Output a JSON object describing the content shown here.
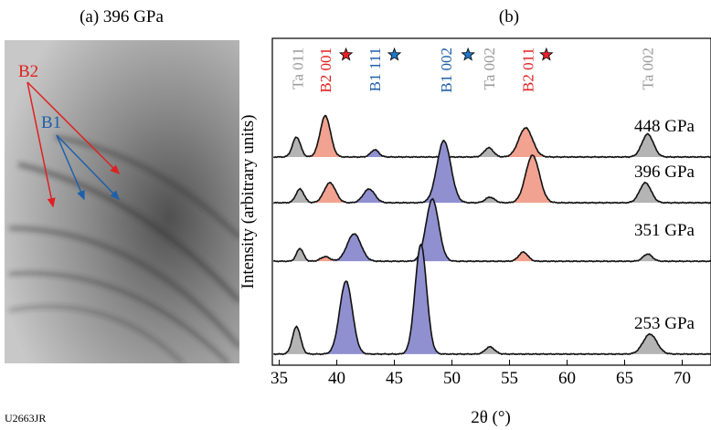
{
  "panel_a": {
    "title": "(a) 396 GPa",
    "label_b2": "B2",
    "label_b1": "B1"
  },
  "footer": "U2663JR",
  "chart_data": {
    "type": "line",
    "title": "(b)",
    "xlabel": "2θ (°)",
    "ylabel": "Intensity (arbitrary units)",
    "xlim": [
      34.4,
      72.5
    ],
    "xticks": [
      35,
      40,
      45,
      50,
      55,
      60,
      65,
      70
    ],
    "ylim": [
      0,
      100
    ],
    "peak_labels": [
      {
        "text": "Ta 011",
        "x": 36.6,
        "color": "#9a9a9a"
      },
      {
        "text": "B2 001",
        "x": 39.0,
        "color": "#e02020"
      },
      {
        "text": "B1 111",
        "x": 43.3,
        "color": "#1f5faa"
      },
      {
        "text": "B1 002",
        "x": 49.5,
        "color": "#1f5faa"
      },
      {
        "text": "Ta 002",
        "x": 53.2,
        "color": "#9a9a9a"
      },
      {
        "text": "B2 011",
        "x": 56.6,
        "color": "#e02020"
      },
      {
        "text": "Ta 002",
        "x": 67.0,
        "color": "#9a9a9a"
      }
    ],
    "markers": [
      {
        "x": 40.8,
        "color": "#e8202a"
      },
      {
        "x": 45.0,
        "color": "#1e78c8"
      },
      {
        "x": 51.4,
        "color": "#1e78c8"
      },
      {
        "x": 58.2,
        "color": "#e8202a"
      }
    ],
    "series": [
      {
        "name": "448 GPa",
        "offset": 63.7,
        "peaks": [
          {
            "x": 36.5,
            "height": 6.1,
            "width": 0.35,
            "color": "#b4b4b4"
          },
          {
            "x": 39.0,
            "height": 12.6,
            "width": 0.45,
            "color": "#f2a290"
          },
          {
            "x": 43.3,
            "height": 2.2,
            "width": 0.35,
            "color": "#9090d0"
          },
          {
            "x": 53.2,
            "height": 2.8,
            "width": 0.4,
            "color": "#b4b4b4"
          },
          {
            "x": 56.4,
            "height": 8.9,
            "width": 0.6,
            "color": "#f2a290"
          },
          {
            "x": 67.0,
            "height": 7.0,
            "width": 0.5,
            "color": "#b4b4b4"
          }
        ]
      },
      {
        "name": "396 GPa",
        "offset": 49.7,
        "peaks": [
          {
            "x": 36.8,
            "height": 4.2,
            "width": 0.35,
            "color": "#b4b4b4"
          },
          {
            "x": 39.4,
            "height": 6.1,
            "width": 0.5,
            "color": "#f2a290"
          },
          {
            "x": 42.8,
            "height": 4.2,
            "width": 0.5,
            "color": "#9090d0"
          },
          {
            "x": 49.3,
            "height": 19.0,
            "width": 0.6,
            "color": "#9090d0"
          },
          {
            "x": 53.3,
            "height": 1.7,
            "width": 0.4,
            "color": "#b4b4b4"
          },
          {
            "x": 57.0,
            "height": 14.5,
            "width": 0.6,
            "color": "#f2a290"
          },
          {
            "x": 66.8,
            "height": 6.1,
            "width": 0.5,
            "color": "#b4b4b4"
          }
        ]
      },
      {
        "name": "351 GPa",
        "offset": 31.8,
        "peaks": [
          {
            "x": 36.8,
            "height": 3.9,
            "width": 0.3,
            "color": "#b4b4b4"
          },
          {
            "x": 39.0,
            "height": 1.4,
            "width": 0.4,
            "color": "#f2a290"
          },
          {
            "x": 41.5,
            "height": 8.4,
            "width": 0.6,
            "color": "#9090d0"
          },
          {
            "x": 48.3,
            "height": 19.0,
            "width": 0.55,
            "color": "#9090d0"
          },
          {
            "x": 56.2,
            "height": 2.8,
            "width": 0.4,
            "color": "#f2a290"
          },
          {
            "x": 67.0,
            "height": 2.2,
            "width": 0.4,
            "color": "#b4b4b4"
          }
        ]
      },
      {
        "name": "253 GPa",
        "offset": 3.4,
        "peaks": [
          {
            "x": 36.5,
            "height": 8.4,
            "width": 0.35,
            "color": "#b4b4b4"
          },
          {
            "x": 40.8,
            "height": 22.3,
            "width": 0.55,
            "color": "#9090d0"
          },
          {
            "x": 47.3,
            "height": 33.5,
            "width": 0.5,
            "color": "#9090d0"
          },
          {
            "x": 53.3,
            "height": 2.2,
            "width": 0.4,
            "color": "#b4b4b4"
          },
          {
            "x": 67.2,
            "height": 6.1,
            "width": 0.6,
            "color": "#b4b4b4"
          }
        ]
      }
    ]
  }
}
